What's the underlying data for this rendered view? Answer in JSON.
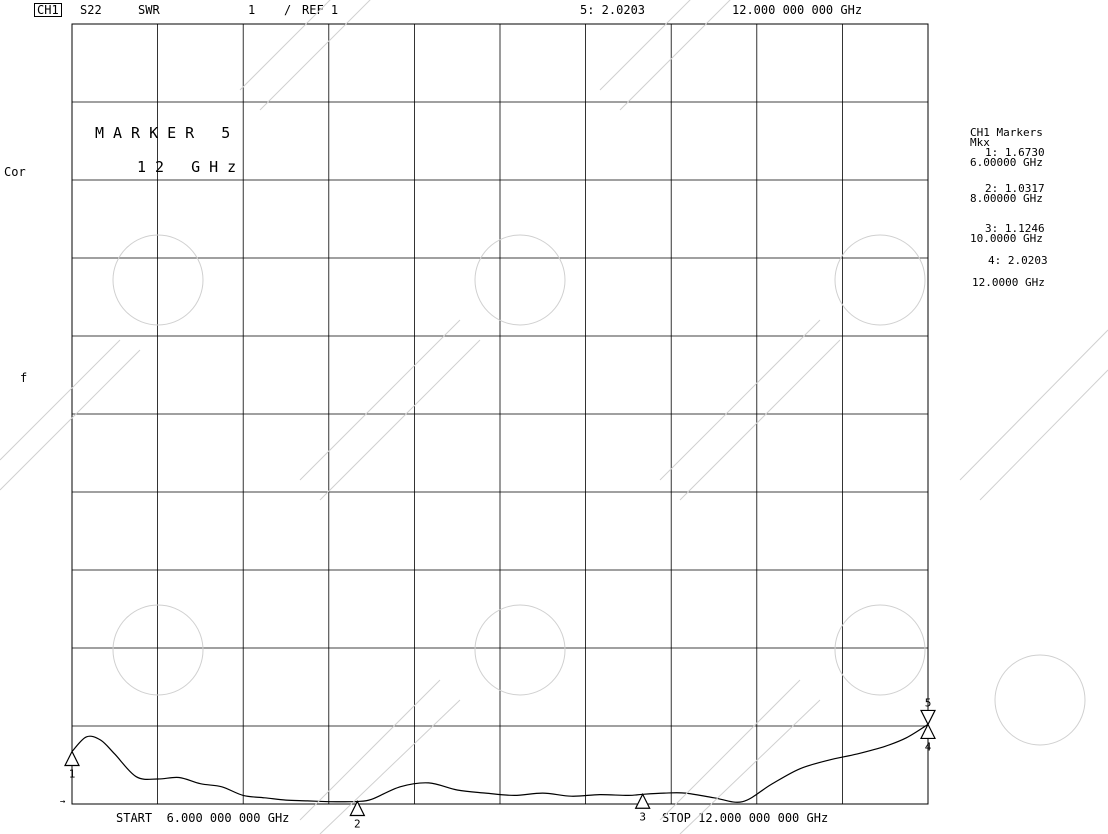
{
  "header": {
    "channel": "CH1",
    "parameter": "S22",
    "format": "SWR",
    "scale": "1",
    "scale_sep": "/",
    "ref": "REF 1",
    "active_marker_readout": "5: 2.0203",
    "active_marker_freq": "12.000 000 000 GHz"
  },
  "left_annotations": {
    "cor": "Cor",
    "f": "f",
    "tick": "→"
  },
  "marker_display": {
    "line1": "MARKER 5",
    "line2": "12 GHz"
  },
  "footer": {
    "start": "START  6.000 000 000 GHz",
    "stop": "STOP 12.000 000 000 GHz"
  },
  "marker_list": {
    "title": "CH1 Markers",
    "subtitle": "Mkx",
    "items": [
      {
        "value": "1: 1.6730",
        "freq": "6.00000 GHz"
      },
      {
        "value": "2: 1.0317",
        "freq": "8.00000 GHz"
      },
      {
        "value": "3: 1.1246",
        "freq": "10.0000 GHz"
      },
      {
        "value": "4: 2.0203",
        "freq": "12.0000 GHz"
      }
    ]
  },
  "chart_data": {
    "type": "line",
    "xlim": [
      6.0,
      12.0
    ],
    "ylim": [
      1.0,
      11.0
    ],
    "grid": true,
    "x": [
      6.0,
      6.1,
      6.2,
      6.3,
      6.45,
      6.6,
      6.75,
      6.9,
      7.05,
      7.2,
      7.35,
      7.5,
      7.65,
      7.8,
      7.95,
      8.0,
      8.1,
      8.3,
      8.5,
      8.7,
      8.9,
      9.1,
      9.3,
      9.5,
      9.7,
      9.9,
      10.0,
      10.15,
      10.3,
      10.5,
      10.7,
      10.9,
      11.1,
      11.3,
      11.5,
      11.7,
      11.85,
      12.0
    ],
    "y": [
      1.673,
      1.86,
      1.82,
      1.64,
      1.35,
      1.32,
      1.34,
      1.26,
      1.22,
      1.11,
      1.08,
      1.05,
      1.04,
      1.03,
      1.03,
      1.032,
      1.06,
      1.22,
      1.27,
      1.18,
      1.14,
      1.11,
      1.14,
      1.1,
      1.12,
      1.11,
      1.125,
      1.14,
      1.14,
      1.08,
      1.03,
      1.25,
      1.45,
      1.56,
      1.64,
      1.74,
      1.85,
      2.02
    ],
    "markers": [
      {
        "id": "1",
        "x": 6.0,
        "y": 1.673,
        "pointer": "up",
        "label_pos": "below"
      },
      {
        "id": "2",
        "x": 8.0,
        "y": 1.0317,
        "pointer": "up",
        "label_pos": "below"
      },
      {
        "id": "3",
        "x": 10.0,
        "y": 1.1246,
        "pointer": "up",
        "label_pos": "below"
      },
      {
        "id": "4",
        "x": 12.0,
        "y": 2.0203,
        "pointer": "up",
        "label_pos": "below"
      },
      {
        "id": "5",
        "x": 12.0,
        "y": 2.0203,
        "pointer": "down",
        "label_pos": "above"
      }
    ]
  }
}
